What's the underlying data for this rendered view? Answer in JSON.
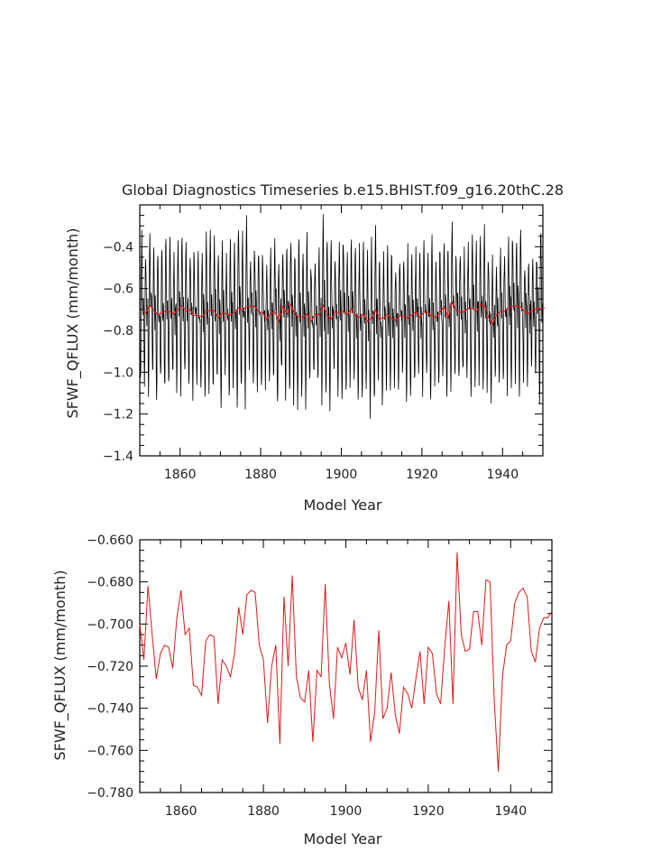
{
  "colors": {
    "black_series": "#000000",
    "red_series": "#e01818",
    "axis": "#000000"
  },
  "chart_data": [
    {
      "type": "line",
      "title": "Global Diagnostics Timeseries b.e15.BHIST.f09_g16.20thC.28",
      "xlabel": "Model Year",
      "ylabel": "SFWF_QFLUX (mm/month)",
      "xlim": [
        1850,
        1950
      ],
      "ylim": [
        -1.4,
        -0.2
      ],
      "xticks": [
        1860,
        1880,
        1900,
        1920,
        1940
      ],
      "xtick_labels": [
        "1860",
        "1880",
        "1900",
        "1920",
        "1940"
      ],
      "yticks": [
        -1.4,
        -1.2,
        -1.0,
        -0.8,
        -0.6,
        -0.4
      ],
      "ytick_labels": [
        "−1.4",
        "−1.2",
        "−1.0",
        "−0.8",
        "−0.6",
        "−0.4"
      ],
      "series": [
        {
          "name": "monthly",
          "color": "#000000",
          "monthly_pattern": [
            -0.72,
            -0.92,
            -1.05,
            -0.98,
            -0.62,
            -0.48,
            -0.42,
            -0.55,
            -0.68,
            -0.76,
            -0.66,
            -0.7
          ]
        },
        {
          "name": "annual_mean",
          "color": "#e01818",
          "source": "annual_means"
        }
      ]
    },
    {
      "type": "line",
      "title": "",
      "xlabel": "Model Year",
      "ylabel": "SFWF_QFLUX (mm/month)",
      "xlim": [
        1850,
        1950
      ],
      "ylim": [
        -0.78,
        -0.66
      ],
      "xticks": [
        1860,
        1880,
        1900,
        1920,
        1940
      ],
      "xtick_labels": [
        "1860",
        "1880",
        "1900",
        "1920",
        "1940"
      ],
      "yticks": [
        -0.78,
        -0.76,
        -0.74,
        -0.72,
        -0.7,
        -0.68,
        -0.66
      ],
      "ytick_labels": [
        "−0.780",
        "−0.760",
        "−0.740",
        "−0.720",
        "−0.700",
        "−0.680",
        "−0.660"
      ],
      "series": [
        {
          "name": "annual_mean",
          "color": "#e01818",
          "x_start": 1850,
          "x_step": 1,
          "values": [
            -0.7,
            -0.717,
            -0.682,
            -0.705,
            -0.726,
            -0.714,
            -0.71,
            -0.711,
            -0.721,
            -0.697,
            -0.684,
            -0.705,
            -0.702,
            -0.729,
            -0.73,
            -0.734,
            -0.708,
            -0.705,
            -0.706,
            -0.738,
            -0.717,
            -0.72,
            -0.725,
            -0.714,
            -0.692,
            -0.705,
            -0.686,
            -0.684,
            -0.685,
            -0.71,
            -0.717,
            -0.747,
            -0.72,
            -0.71,
            -0.757,
            -0.687,
            -0.72,
            -0.677,
            -0.725,
            -0.735,
            -0.737,
            -0.722,
            -0.756,
            -0.722,
            -0.725,
            -0.681,
            -0.728,
            -0.745,
            -0.711,
            -0.716,
            -0.709,
            -0.724,
            -0.698,
            -0.73,
            -0.736,
            -0.722,
            -0.756,
            -0.742,
            -0.703,
            -0.745,
            -0.74,
            -0.723,
            -0.743,
            -0.752,
            -0.73,
            -0.733,
            -0.74,
            -0.726,
            -0.713,
            -0.738,
            -0.711,
            -0.714,
            -0.733,
            -0.738,
            -0.711,
            -0.689,
            -0.738,
            -0.666,
            -0.705,
            -0.713,
            -0.712,
            -0.694,
            -0.694,
            -0.71,
            -0.679,
            -0.68,
            -0.736,
            -0.77,
            -0.725,
            -0.71,
            -0.708,
            -0.69,
            -0.685,
            -0.683,
            -0.687,
            -0.713,
            -0.718,
            -0.702,
            -0.697,
            -0.697,
            -0.694
          ]
        }
      ]
    }
  ]
}
